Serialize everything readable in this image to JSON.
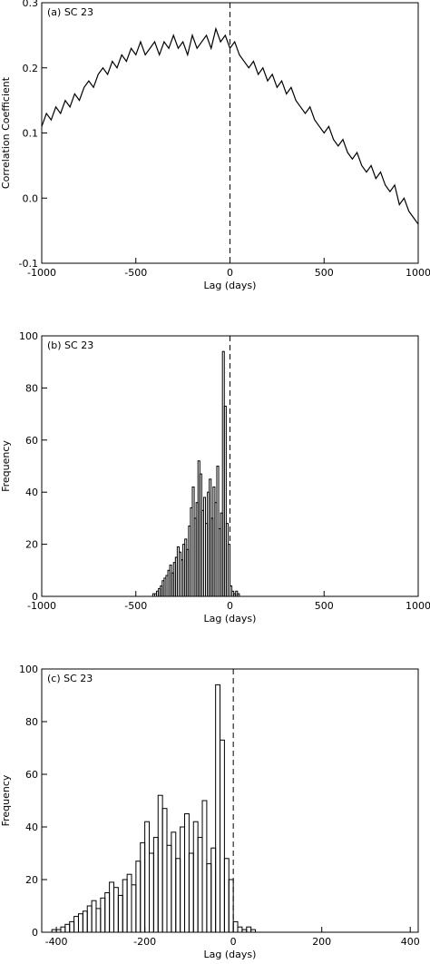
{
  "chart_data": [
    {
      "type": "line",
      "annotation": "(a) SC 23",
      "xlabel": "Lag (days)",
      "ylabel": "Correlation Coefficient",
      "x": [
        -1000,
        -975,
        -950,
        -925,
        -900,
        -875,
        -850,
        -825,
        -800,
        -775,
        -750,
        -725,
        -700,
        -675,
        -650,
        -625,
        -600,
        -575,
        -550,
        -525,
        -500,
        -475,
        -450,
        -425,
        -400,
        -375,
        -350,
        -325,
        -300,
        -275,
        -250,
        -225,
        -200,
        -175,
        -150,
        -125,
        -100,
        -75,
        -50,
        -25,
        0,
        25,
        50,
        75,
        100,
        125,
        150,
        175,
        200,
        225,
        250,
        275,
        300,
        325,
        350,
        375,
        400,
        425,
        450,
        475,
        500,
        525,
        550,
        575,
        600,
        625,
        650,
        675,
        700,
        725,
        750,
        775,
        800,
        825,
        850,
        875,
        900,
        925,
        950,
        975,
        1000
      ],
      "values": [
        0.11,
        0.13,
        0.12,
        0.14,
        0.13,
        0.15,
        0.14,
        0.16,
        0.15,
        0.17,
        0.18,
        0.17,
        0.19,
        0.2,
        0.19,
        0.21,
        0.2,
        0.22,
        0.21,
        0.23,
        0.22,
        0.24,
        0.22,
        0.23,
        0.24,
        0.22,
        0.24,
        0.23,
        0.25,
        0.23,
        0.24,
        0.22,
        0.25,
        0.23,
        0.24,
        0.25,
        0.23,
        0.26,
        0.24,
        0.25,
        0.23,
        0.24,
        0.22,
        0.21,
        0.2,
        0.21,
        0.19,
        0.2,
        0.18,
        0.19,
        0.17,
        0.18,
        0.16,
        0.17,
        0.15,
        0.14,
        0.13,
        0.14,
        0.12,
        0.11,
        0.1,
        0.11,
        0.09,
        0.08,
        0.09,
        0.07,
        0.06,
        0.07,
        0.05,
        0.04,
        0.05,
        0.03,
        0.04,
        0.02,
        0.01,
        0.02,
        -0.01,
        0.0,
        -0.02,
        -0.03,
        -0.04
      ],
      "color": "#000000",
      "xlim": [
        -1000,
        1000
      ],
      "ylim": [
        -0.1,
        0.3
      ],
      "xticks": [
        -1000,
        -500,
        0,
        500,
        1000
      ],
      "yticks": [
        -0.1,
        {
          "value": 0,
          "label": "0.0"
        },
        0.1,
        0.2,
        0.3
      ],
      "vline": 0
    },
    {
      "type": "histogram",
      "annotation": "(b) SC 23",
      "xlabel": "Lag (days)",
      "ylabel": "Frequency",
      "bins": [
        -420,
        -410,
        -400,
        -390,
        -380,
        -370,
        -360,
        -350,
        -340,
        -330,
        -320,
        -310,
        -300,
        -290,
        -280,
        -270,
        -260,
        -250,
        -240,
        -230,
        -220,
        -210,
        -200,
        -190,
        -180,
        -170,
        -160,
        -150,
        -140,
        -130,
        -120,
        -110,
        -100,
        -90,
        -80,
        -70,
        -60,
        -50,
        -40,
        -30,
        -20,
        -10,
        0,
        10,
        20,
        30,
        40,
        50,
        60
      ],
      "values": [
        0,
        1,
        1,
        2,
        3,
        4,
        6,
        7,
        8,
        10,
        12,
        9,
        13,
        15,
        19,
        17,
        14,
        20,
        22,
        18,
        27,
        34,
        42,
        30,
        36,
        52,
        47,
        33,
        38,
        28,
        40,
        45,
        30,
        42,
        36,
        50,
        26,
        32,
        94,
        73,
        28,
        20,
        4,
        2,
        1,
        2,
        1,
        0
      ],
      "color": "#000000",
      "xlim": [
        -1000,
        1000
      ],
      "ylim": [
        0,
        100
      ],
      "xticks": [
        -1000,
        -500,
        0,
        500,
        1000
      ],
      "yticks": [
        0,
        20,
        40,
        60,
        80,
        100
      ],
      "vline": 0
    },
    {
      "type": "histogram",
      "annotation": "(c) SC 23",
      "xlabel": "Lag (days)",
      "ylabel": "Frequency",
      "bins": [
        -420,
        -410,
        -400,
        -390,
        -380,
        -370,
        -360,
        -350,
        -340,
        -330,
        -320,
        -310,
        -300,
        -290,
        -280,
        -270,
        -260,
        -250,
        -240,
        -230,
        -220,
        -210,
        -200,
        -190,
        -180,
        -170,
        -160,
        -150,
        -140,
        -130,
        -120,
        -110,
        -100,
        -90,
        -80,
        -70,
        -60,
        -50,
        -40,
        -30,
        -20,
        -10,
        0,
        10,
        20,
        30,
        40,
        50,
        60
      ],
      "values": [
        0,
        1,
        1,
        2,
        3,
        4,
        6,
        7,
        8,
        10,
        12,
        9,
        13,
        15,
        19,
        17,
        14,
        20,
        22,
        18,
        27,
        34,
        42,
        30,
        36,
        52,
        47,
        33,
        38,
        28,
        40,
        45,
        30,
        42,
        36,
        50,
        26,
        32,
        94,
        73,
        28,
        20,
        4,
        2,
        1,
        2,
        1,
        0
      ],
      "color": "#000000",
      "xlim": [
        -433,
        418
      ],
      "ylim": [
        0,
        100
      ],
      "xticks": [
        -400,
        -200,
        0,
        200,
        400
      ],
      "yticks": [
        0,
        20,
        40,
        60,
        80,
        100
      ],
      "vline": 0
    }
  ]
}
